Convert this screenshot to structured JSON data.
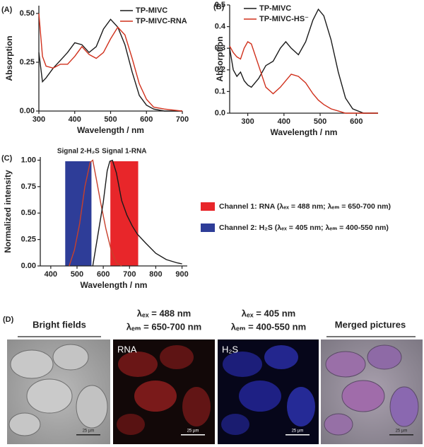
{
  "panel_labels": [
    "(A)",
    "(B)",
    "(C)",
    "(D)"
  ],
  "chart_data": [
    {
      "type": "line",
      "ylabel": "Absorption",
      "xlabel": "Wavelength / nm",
      "xlim": [
        300,
        700
      ],
      "xticks": [
        300,
        400,
        500,
        600,
        700
      ],
      "ylim": [
        0,
        0.54
      ],
      "yticks": [
        {
          "value": 0,
          "label": "0.00"
        },
        {
          "value": 0.25,
          "label": "0.25"
        },
        {
          "value": 0.5,
          "label": "0.50"
        }
      ],
      "x": [
        300,
        310,
        320,
        340,
        360,
        380,
        400,
        420,
        440,
        460,
        480,
        500,
        520,
        540,
        560,
        580,
        600,
        620,
        650,
        700
      ],
      "series": [
        {
          "name": "TP-MIVC",
          "color": "#1a1a1a",
          "values": [
            0.3,
            0.15,
            0.17,
            0.22,
            0.26,
            0.3,
            0.35,
            0.34,
            0.3,
            0.33,
            0.42,
            0.47,
            0.43,
            0.34,
            0.2,
            0.08,
            0.03,
            0.01,
            0,
            0
          ]
        },
        {
          "name": "TP-MIVC-RNA",
          "color": "#d0301c",
          "values": [
            0.5,
            0.28,
            0.23,
            0.22,
            0.24,
            0.24,
            0.28,
            0.33,
            0.29,
            0.27,
            0.3,
            0.37,
            0.43,
            0.39,
            0.27,
            0.14,
            0.06,
            0.02,
            0.01,
            0
          ]
        }
      ]
    },
    {
      "type": "line",
      "ylabel": "Absorption",
      "xlabel": "Wavelength / nm",
      "xlim": [
        250,
        660
      ],
      "xticks": [
        300,
        400,
        500,
        600
      ],
      "ylim": [
        0,
        0.5
      ],
      "yticks": [
        {
          "value": 0,
          "label": "0.0"
        },
        {
          "value": 0.1,
          "label": "0.1"
        },
        {
          "value": 0.2,
          "label": "0.2"
        },
        {
          "value": 0.3,
          "label": "0.3"
        },
        {
          "value": 0.4,
          "label": "0.4"
        },
        {
          "value": 0.5,
          "label": "0.5"
        }
      ],
      "x": [
        250,
        260,
        270,
        280,
        290,
        300,
        310,
        330,
        350,
        370,
        390,
        405,
        420,
        440,
        460,
        480,
        495,
        510,
        530,
        550,
        570,
        590,
        620,
        660
      ],
      "series": [
        {
          "name": "TP-MIVC",
          "color": "#1a1a1a",
          "values": [
            0.3,
            0.2,
            0.17,
            0.19,
            0.15,
            0.13,
            0.12,
            0.16,
            0.22,
            0.24,
            0.3,
            0.33,
            0.3,
            0.27,
            0.33,
            0.43,
            0.48,
            0.45,
            0.34,
            0.19,
            0.07,
            0.02,
            0,
            0
          ]
        },
        {
          "name": "TP-MIVC-HS⁻",
          "color": "#d0301c",
          "values": [
            0.31,
            0.28,
            0.26,
            0.25,
            0.3,
            0.33,
            0.32,
            0.22,
            0.12,
            0.09,
            0.12,
            0.15,
            0.18,
            0.17,
            0.14,
            0.09,
            0.06,
            0.04,
            0.02,
            0.01,
            0,
            0,
            0,
            0
          ]
        }
      ]
    },
    {
      "type": "line",
      "ylabel": "Normalized intensity",
      "xlabel": "Wavelength / nm",
      "xlim": [
        360,
        920
      ],
      "xticks": [
        400,
        500,
        600,
        700,
        800,
        900
      ],
      "ylim": [
        0,
        1.03
      ],
      "yticks": [
        {
          "value": 0,
          "label": "0.00"
        },
        {
          "value": 0.25,
          "label": "0.25"
        },
        {
          "value": 0.5,
          "label": "0.50"
        },
        {
          "value": 0.75,
          "label": "0.75"
        },
        {
          "value": 1,
          "label": "1.00"
        }
      ],
      "bands": [
        {
          "name": "Signal 1-RNA",
          "legend": "Channel 1:  RNA (λₑₓ = 488 nm; λₑₘ = 650-700 nm)",
          "color": "#e8262a",
          "x": [
            627,
            733
          ]
        },
        {
          "name": "Signal 2-H₂S",
          "legend": "Channel 2:  H₂S (λₑₓ = 405 nm; λₑₘ = 400-550 nm)",
          "color": "#2e3d98",
          "x": [
            455,
            555
          ]
        }
      ],
      "series": [
        {
          "color": "#c8402c",
          "x": [
            470,
            490,
            510,
            530,
            550,
            560,
            575,
            590,
            610,
            630,
            650,
            670
          ],
          "values": [
            0,
            0.15,
            0.4,
            0.75,
            0.98,
            1.0,
            0.8,
            0.6,
            0.35,
            0.15,
            0.03,
            0
          ]
        },
        {
          "color": "#1a1a1a",
          "x": [
            560,
            580,
            600,
            615,
            625,
            635,
            650,
            670,
            690,
            710,
            730,
            760,
            800,
            840,
            880,
            900
          ],
          "values": [
            0,
            0.3,
            0.6,
            0.9,
            0.99,
            1.0,
            0.88,
            0.62,
            0.48,
            0.38,
            0.3,
            0.22,
            0.12,
            0.06,
            0.03,
            0.02
          ]
        }
      ]
    }
  ],
  "microscopy": {
    "columns": [
      {
        "header": [
          "Bright fields"
        ]
      },
      {
        "header": [
          "λₑₓ = 488 nm",
          "λₑₘ = 650-700 nm"
        ],
        "inset": "RNA"
      },
      {
        "header": [
          "λₑₓ = 405 nm",
          "λₑₘ = 400-550 nm"
        ],
        "inset": "H₂S"
      },
      {
        "header": [
          "Merged pictures"
        ]
      }
    ],
    "scale_bar": "25 µm"
  }
}
